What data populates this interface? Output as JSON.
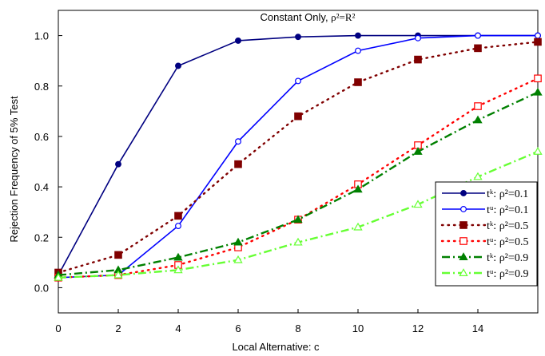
{
  "chart_data": {
    "type": "line",
    "title_prefix": "Constant Only, ",
    "title_formula": "ρ²=R²",
    "xlabel": "Local Alternative:  c",
    "ylabel": "Rejection Frequency of 5% Test",
    "xlim": [
      0,
      16
    ],
    "ylim": [
      -0.1,
      1.1
    ],
    "xticks": [
      0,
      2,
      4,
      6,
      8,
      10,
      12,
      14
    ],
    "xtick_labels": [
      "0",
      "2",
      "4",
      "6",
      "8",
      "10",
      "12",
      "14"
    ],
    "yticks": [
      0.0,
      0.2,
      0.4,
      0.6,
      0.8,
      1.0
    ],
    "ytick_labels": [
      "0.0",
      "0.2",
      "0.4",
      "0.6",
      "0.8",
      "1.0"
    ],
    "grid": false,
    "legend_position": "bottom-right",
    "x": [
      0,
      2,
      4,
      6,
      8,
      10,
      12,
      14,
      16
    ],
    "series": [
      {
        "name": "tᵏ: ρ²=0.1",
        "values": [
          0.05,
          0.49,
          0.88,
          0.98,
          0.995,
          1.0,
          1.0,
          1.0,
          1.0
        ],
        "color": "#000080",
        "marker": "filled-circle",
        "dash": "solid"
      },
      {
        "name": "tᵘ: ρ²=0.1",
        "values": [
          0.04,
          0.05,
          0.245,
          0.58,
          0.82,
          0.94,
          0.99,
          1.0,
          1.0
        ],
        "color": "#0000ff",
        "marker": "open-circle",
        "dash": "solid"
      },
      {
        "name": "tᵏ: ρ²=0.5",
        "values": [
          0.06,
          0.13,
          0.285,
          0.49,
          0.68,
          0.815,
          0.905,
          0.95,
          0.975
        ],
        "color": "#800000",
        "marker": "filled-square",
        "dash": "dotted"
      },
      {
        "name": "tᵘ: ρ²=0.5",
        "values": [
          0.04,
          0.05,
          0.09,
          0.16,
          0.27,
          0.41,
          0.565,
          0.72,
          0.83
        ],
        "color": "#ff0000",
        "marker": "open-square",
        "dash": "dotted"
      },
      {
        "name": "tᵏ: ρ²=0.9",
        "values": [
          0.05,
          0.07,
          0.12,
          0.18,
          0.27,
          0.39,
          0.54,
          0.665,
          0.775
        ],
        "color": "#008000",
        "marker": "filled-triangle",
        "dash": "dashdot"
      },
      {
        "name": "tᵘ: ρ²=0.9",
        "values": [
          0.04,
          0.05,
          0.07,
          0.11,
          0.18,
          0.24,
          0.33,
          0.44,
          0.54
        ],
        "color": "#66ff33",
        "marker": "open-triangle",
        "dash": "dashdot"
      }
    ]
  }
}
